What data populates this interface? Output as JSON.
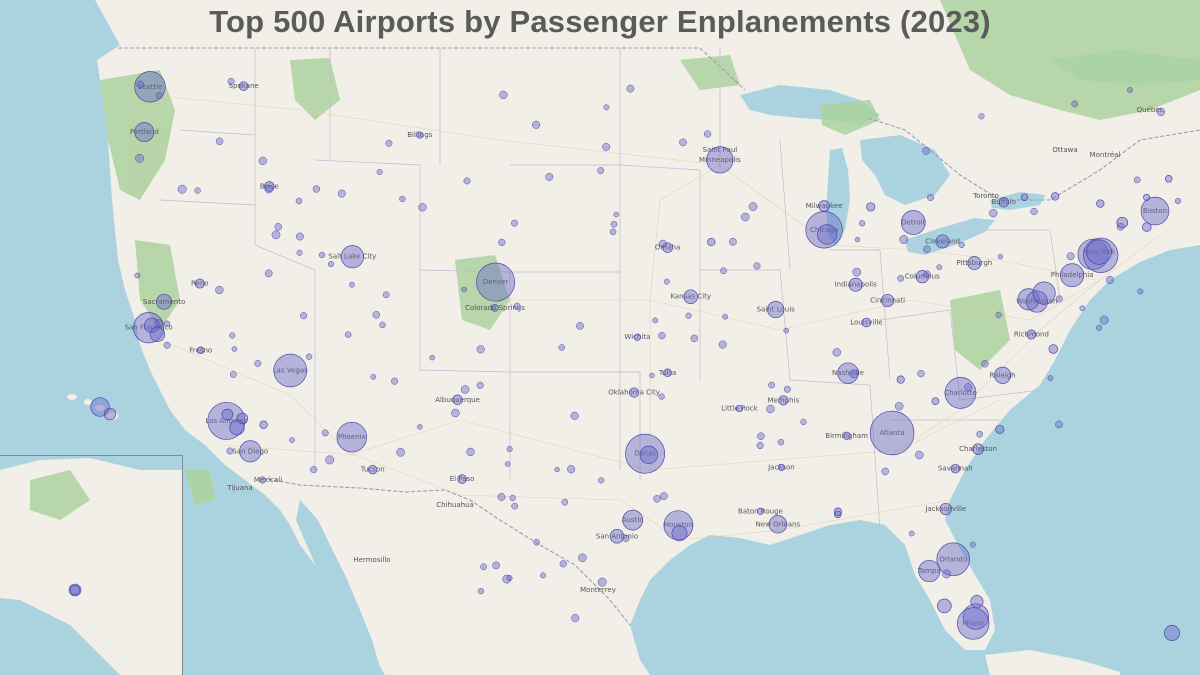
{
  "map": {
    "title": "Top 500 Airports by Passenger Enplanements (2023)",
    "colors": {
      "ocean": "#aad3df",
      "land": "#f2efe9",
      "forest": "#add19e",
      "park": "#c8facc",
      "border": "#9e9cab",
      "road": "#e6c9a3",
      "marker_fill": "#6a6ac8",
      "marker_stroke": "#4b4ba8"
    },
    "city_labels": [
      "Seattle",
      "Portland",
      "Boise",
      "Salt Lake City",
      "Denver",
      "Sacramento",
      "San Francisco",
      "Fresno",
      "Las Vegas",
      "Los Angeles",
      "San Diego",
      "Phoenix",
      "Tucson",
      "El Paso",
      "Albuquerque",
      "Dallas",
      "Houston",
      "San Antonio",
      "Austin",
      "Oklahoma City",
      "Kansas City",
      "Omaha",
      "Minneapolis",
      "Saint Paul",
      "Chicago",
      "Milwaukee",
      "Detroit",
      "Saint Louis",
      "Indianapolis",
      "Nashville",
      "Memphis",
      "Atlanta",
      "Charlotte",
      "Raleigh",
      "Washington",
      "Philadelphia",
      "New York",
      "Boston",
      "Toronto",
      "Montréal",
      "Ottawa",
      "Québec",
      "Jacksonville",
      "Orlando",
      "Tampa",
      "Miami",
      "New Orleans",
      "Monterrey",
      "Chihuahua",
      "Hermosillo",
      "Mexicali",
      "Tijuana",
      "Pittsburgh",
      "Cleveland",
      "Columbus",
      "Cincinnati",
      "Louisville",
      "Baton Rouge",
      "Birmingham",
      "Richmond",
      "Buffalo",
      "Billings",
      "Spokane",
      "Reno",
      "Colorado Springs",
      "Wichita",
      "Tulsa",
      "Little Rock",
      "Jackson",
      "Savannah",
      "Charleston"
    ],
    "airport_markers": [
      {
        "name": "Seattle",
        "lat": 47.45,
        "lon": -122.31,
        "pax": 24.4
      },
      {
        "name": "Portland",
        "lat": 45.59,
        "lon": -122.6,
        "pax": 9.5
      },
      {
        "name": "Spokane",
        "lat": 47.62,
        "lon": -117.53,
        "pax": 2.0
      },
      {
        "name": "Boise",
        "lat": 43.56,
        "lon": -116.22,
        "pax": 2.5
      },
      {
        "name": "Salt Lake City",
        "lat": 40.79,
        "lon": -111.98,
        "pax": 13.0
      },
      {
        "name": "Denver",
        "lat": 39.86,
        "lon": -104.67,
        "pax": 37.9
      },
      {
        "name": "Colorado Springs",
        "lat": 38.81,
        "lon": -104.7,
        "pax": 1.2
      },
      {
        "name": "Sacramento",
        "lat": 38.7,
        "lon": -121.59,
        "pax": 6.0
      },
      {
        "name": "San Francisco",
        "lat": 37.62,
        "lon": -122.38,
        "pax": 24.0
      },
      {
        "name": "Oakland",
        "lat": 37.72,
        "lon": -122.22,
        "pax": 5.5
      },
      {
        "name": "San Jose",
        "lat": 37.36,
        "lon": -121.93,
        "pax": 5.5
      },
      {
        "name": "Reno",
        "lat": 39.5,
        "lon": -119.77,
        "pax": 2.2
      },
      {
        "name": "Fresno",
        "lat": 36.78,
        "lon": -119.72,
        "pax": 1.2
      },
      {
        "name": "Las Vegas",
        "lat": 36.08,
        "lon": -115.15,
        "pax": 28.0
      },
      {
        "name": "Los Angeles",
        "lat": 33.94,
        "lon": -118.41,
        "pax": 36.0
      },
      {
        "name": "Ontario",
        "lat": 34.06,
        "lon": -117.6,
        "pax": 3.0
      },
      {
        "name": "Santa Ana",
        "lat": 33.68,
        "lon": -117.87,
        "pax": 5.5
      },
      {
        "name": "Burbank",
        "lat": 34.2,
        "lon": -118.36,
        "pax": 3.0
      },
      {
        "name": "San Diego",
        "lat": 32.73,
        "lon": -117.19,
        "pax": 12.0
      },
      {
        "name": "Palm Springs",
        "lat": 33.83,
        "lon": -116.51,
        "pax": 1.5
      },
      {
        "name": "Phoenix",
        "lat": 33.43,
        "lon": -112.01,
        "pax": 23.0
      },
      {
        "name": "Tucson",
        "lat": 32.12,
        "lon": -110.94,
        "pax": 1.9
      },
      {
        "name": "Albuquerque",
        "lat": 35.04,
        "lon": -106.61,
        "pax": 2.5
      },
      {
        "name": "El Paso",
        "lat": 31.81,
        "lon": -106.38,
        "pax": 2.0
      },
      {
        "name": "Dallas",
        "lat": 32.9,
        "lon": -97.04,
        "pax": 40.0
      },
      {
        "name": "Dallas Love",
        "lat": 32.85,
        "lon": -96.85,
        "pax": 8.0
      },
      {
        "name": "Houston",
        "lat": 29.98,
        "lon": -95.34,
        "pax": 22.0
      },
      {
        "name": "Houston Hobby",
        "lat": 29.65,
        "lon": -95.28,
        "pax": 6.0
      },
      {
        "name": "Austin",
        "lat": 30.19,
        "lon": -97.67,
        "pax": 10.5
      },
      {
        "name": "San Antonio",
        "lat": 29.53,
        "lon": -98.47,
        "pax": 5.0
      },
      {
        "name": "Oklahoma City",
        "lat": 35.39,
        "lon": -97.6,
        "pax": 2.3
      },
      {
        "name": "Tulsa",
        "lat": 36.2,
        "lon": -95.89,
        "pax": 1.6
      },
      {
        "name": "Wichita",
        "lat": 37.65,
        "lon": -97.43,
        "pax": 0.9
      },
      {
        "name": "Kansas City",
        "lat": 39.3,
        "lon": -94.71,
        "pax": 5.0
      },
      {
        "name": "Omaha",
        "lat": 41.3,
        "lon": -95.89,
        "pax": 2.5
      },
      {
        "name": "Des Moines",
        "lat": 41.53,
        "lon": -93.66,
        "pax": 1.5
      },
      {
        "name": "Minneapolis",
        "lat": 44.88,
        "lon": -93.22,
        "pax": 18.0
      },
      {
        "name": "Milwaukee",
        "lat": 42.95,
        "lon": -87.9,
        "pax": 3.0
      },
      {
        "name": "Chicago",
        "lat": 41.98,
        "lon": -87.9,
        "pax": 35.0
      },
      {
        "name": "Chicago Midway",
        "lat": 41.79,
        "lon": -87.75,
        "pax": 10.0
      },
      {
        "name": "Detroit",
        "lat": 42.21,
        "lon": -83.35,
        "pax": 15.0
      },
      {
        "name": "Grand Rapids",
        "lat": 42.88,
        "lon": -85.52,
        "pax": 1.8
      },
      {
        "name": "Saint Louis",
        "lat": 38.75,
        "lon": -90.37,
        "pax": 7.0
      },
      {
        "name": "Indianapolis",
        "lat": 39.72,
        "lon": -86.29,
        "pax": 4.5
      },
      {
        "name": "Columbus",
        "lat": 39.99,
        "lon": -82.89,
        "pax": 4.0
      },
      {
        "name": "Cleveland",
        "lat": 41.41,
        "lon": -81.85,
        "pax": 4.5
      },
      {
        "name": "Cincinnati",
        "lat": 39.05,
        "lon": -84.66,
        "pax": 4.0
      },
      {
        "name": "Louisville",
        "lat": 38.17,
        "lon": -85.74,
        "pax": 2.0
      },
      {
        "name": "Pittsburgh",
        "lat": 40.49,
        "lon": -80.23,
        "pax": 4.5
      },
      {
        "name": "Nashville",
        "lat": 36.12,
        "lon": -86.68,
        "pax": 11.0
      },
      {
        "name": "Memphis",
        "lat": 35.04,
        "lon": -89.98,
        "pax": 2.3
      },
      {
        "name": "Atlanta",
        "lat": 33.64,
        "lon": -84.43,
        "pax": 50.0
      },
      {
        "name": "Charlotte",
        "lat": 35.21,
        "lon": -80.94,
        "pax": 25.0
      },
      {
        "name": "Raleigh",
        "lat": 35.88,
        "lon": -78.79,
        "pax": 7.0
      },
      {
        "name": "Richmond",
        "lat": 37.51,
        "lon": -77.32,
        "pax": 2.2
      },
      {
        "name": "Norfolk",
        "lat": 36.89,
        "lon": -76.2,
        "pax": 2.0
      },
      {
        "name": "Washington Dulles",
        "lat": 38.95,
        "lon": -77.46,
        "pax": 12.0
      },
      {
        "name": "Washington National",
        "lat": 38.85,
        "lon": -77.04,
        "pax": 12.0
      },
      {
        "name": "Baltimore",
        "lat": 39.18,
        "lon": -76.67,
        "pax": 13.0
      },
      {
        "name": "Philadelphia",
        "lat": 39.87,
        "lon": -75.24,
        "pax": 14.0
      },
      {
        "name": "Newark",
        "lat": 40.69,
        "lon": -74.17,
        "pax": 24.0
      },
      {
        "name": "New York JFK",
        "lat": 40.64,
        "lon": -73.78,
        "pax": 31.0
      },
      {
        "name": "New York LaGuardia",
        "lat": 40.78,
        "lon": -73.87,
        "pax": 16.0
      },
      {
        "name": "Boston",
        "lat": 42.36,
        "lon": -71.01,
        "pax": 20.0
      },
      {
        "name": "Providence",
        "lat": 41.72,
        "lon": -71.43,
        "pax": 2.0
      },
      {
        "name": "Hartford",
        "lat": 41.94,
        "lon": -72.68,
        "pax": 3.0
      },
      {
        "name": "Buffalo",
        "lat": 42.94,
        "lon": -78.73,
        "pax": 2.5
      },
      {
        "name": "Albany",
        "lat": 42.75,
        "lon": -73.8,
        "pax": 1.5
      },
      {
        "name": "Jacksonville",
        "lat": 30.49,
        "lon": -81.69,
        "pax": 3.5
      },
      {
        "name": "Orlando",
        "lat": 28.43,
        "lon": -81.31,
        "pax": 28.0
      },
      {
        "name": "Tampa",
        "lat": 27.98,
        "lon": -82.53,
        "pax": 12.0
      },
      {
        "name": "Fort Myers",
        "lat": 26.54,
        "lon": -81.76,
        "pax": 5.0
      },
      {
        "name": "Palm Beach",
        "lat": 26.68,
        "lon": -80.1,
        "pax": 4.0
      },
      {
        "name": "Fort Lauderdale",
        "lat": 26.07,
        "lon": -80.15,
        "pax": 17.0
      },
      {
        "name": "Miami",
        "lat": 25.79,
        "lon": -80.29,
        "pax": 26.0
      },
      {
        "name": "New Orleans",
        "lat": 29.99,
        "lon": -90.26,
        "pax": 8.0
      },
      {
        "name": "Baton Rouge",
        "lat": 30.53,
        "lon": -91.15,
        "pax": 0.4
      },
      {
        "name": "Birmingham",
        "lat": 33.56,
        "lon": -86.75,
        "pax": 1.4
      },
      {
        "name": "Savannah",
        "lat": 32.13,
        "lon": -81.2,
        "pax": 2.0
      },
      {
        "name": "Charleston",
        "lat": 32.9,
        "lon": -80.04,
        "pax": 3.0
      },
      {
        "name": "Little Rock",
        "lat": 34.73,
        "lon": -92.22,
        "pax": 1.1
      },
      {
        "name": "Jackson",
        "lat": 32.31,
        "lon": -90.08,
        "pax": 0.6
      },
      {
        "name": "Billings",
        "lat": 45.81,
        "lon": -108.54,
        "pax": 0.5
      },
      {
        "name": "Anchorage",
        "lat": 61.17,
        "lon": -149.99,
        "pax": 2.5
      },
      {
        "name": "Honolulu",
        "lat": 21.32,
        "lon": -157.92,
        "pax": 9.0
      },
      {
        "name": "Kahului",
        "lat": 20.9,
        "lon": -156.43,
        "pax": 3.5
      },
      {
        "name": "San Juan",
        "lat": 18.44,
        "lon": -66.0,
        "pax": 6.0
      },
      {
        "name": "Gulf Coast",
        "lat": 30.36,
        "lon": -87.2,
        "pax": 1.2
      },
      {
        "name": "Pensacola",
        "lat": 30.47,
        "lon": -87.19,
        "pax": 1.5
      },
      {
        "name": "Myrtle Beach",
        "lat": 33.68,
        "lon": -78.93,
        "pax": 1.8
      },
      {
        "name": "Knoxville",
        "lat": 35.81,
        "lon": -83.99,
        "pax": 1.4
      },
      {
        "name": "Greenville",
        "lat": 34.9,
        "lon": -82.22,
        "pax": 1.3
      },
      {
        "name": "Syracuse",
        "lat": 43.11,
        "lon": -76.11,
        "pax": 1.5
      },
      {
        "name": "Rochester",
        "lat": 43.12,
        "lon": -77.67,
        "pax": 1.2
      },
      {
        "name": "Portland ME",
        "lat": 43.65,
        "lon": -70.31,
        "pax": 1.2
      },
      {
        "name": "Manchester",
        "lat": 42.93,
        "lon": -71.44,
        "pax": 0.7
      }
    ]
  }
}
